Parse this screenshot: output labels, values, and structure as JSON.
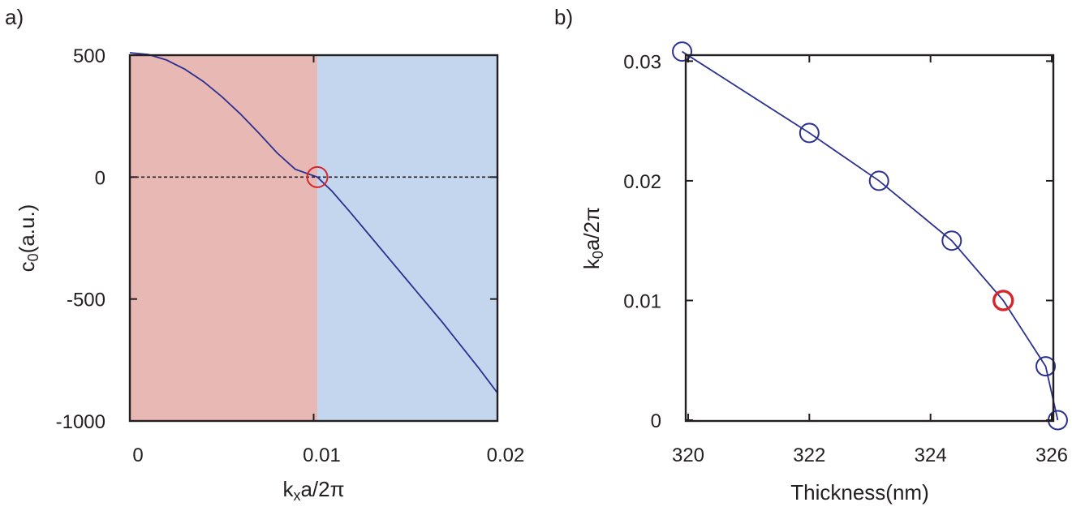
{
  "colors": {
    "curve": "#2b3190",
    "highlight": "#d7262b",
    "region_left": "#e8b8b4",
    "region_right": "#c3d6ee",
    "axis": "#231f20"
  },
  "chart_data": [
    {
      "panel_label": "a)",
      "type": "line",
      "title": "",
      "xlabel": {
        "base": "k",
        "sub": "x",
        "rest": "a/2π"
      },
      "ylabel": {
        "base": "c",
        "sub": "0",
        "rest": "(a.u.)"
      },
      "xlim": [
        0,
        0.02
      ],
      "ylim": [
        -1000,
        500
      ],
      "xticks": [
        0,
        0.01,
        0.02
      ],
      "xtick_labels": [
        "0",
        "0.01",
        "0.02"
      ],
      "yticks": [
        500,
        0,
        -500,
        -1000
      ],
      "ytick_labels": [
        "500",
        "0",
        "-500",
        "-1000"
      ],
      "regions": [
        {
          "x_from": 0,
          "x_to": 0.0102,
          "color": "#e8b8b4"
        },
        {
          "x_from": 0.0102,
          "x_to": 0.02,
          "color": "#c3d6ee"
        }
      ],
      "reference_line": {
        "y": 0,
        "style": "dashed"
      },
      "series": [
        {
          "x": [
            0,
            0.001,
            0.002,
            0.003,
            0.004,
            0.005,
            0.006,
            0.007,
            0.008,
            0.009,
            0.0102,
            0.011,
            0.012,
            0.013,
            0.014,
            0.015,
            0.016,
            0.017,
            0.018,
            0.019,
            0.02
          ],
          "y": [
            510,
            503,
            480,
            442,
            392,
            330,
            260,
            182,
            100,
            32,
            0,
            -58,
            -145,
            -235,
            -325,
            -415,
            -505,
            -595,
            -690,
            -785,
            -885
          ]
        }
      ],
      "marker": {
        "x": 0.0102,
        "y": 0,
        "color": "#d7262b"
      }
    },
    {
      "panel_label": "b)",
      "type": "line",
      "title": "",
      "xlabel": {
        "base": "Thickness(nm)",
        "sub": "",
        "rest": ""
      },
      "ylabel": {
        "base": "k",
        "sub": "0",
        "rest": "a/2π"
      },
      "xlim": [
        320,
        326
      ],
      "ylim": [
        0,
        0.031
      ],
      "xticks": [
        320,
        322,
        324,
        326
      ],
      "xtick_labels": [
        "320",
        "322",
        "324",
        "326"
      ],
      "yticks": [
        0,
        0.01,
        0.02,
        0.03
      ],
      "ytick_labels": [
        "0",
        "0.01",
        "0.02",
        "0.03"
      ],
      "series": [
        {
          "x": [
            319.9,
            322.0,
            323.15,
            324.35,
            325.2,
            325.9,
            326.1
          ],
          "y": [
            0.0308,
            0.024,
            0.02,
            0.015,
            0.01,
            0.0045,
            0.0
          ],
          "highlight_index": 4
        }
      ]
    }
  ]
}
